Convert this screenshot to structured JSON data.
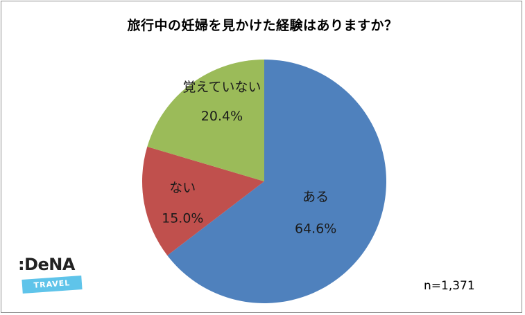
{
  "chart_data": {
    "type": "pie",
    "title": "旅行中の妊婦を見かけた経験はありますか？",
    "slices": [
      {
        "label": "ある",
        "value": 64.6,
        "display": "64.6%",
        "color": "#4f81bd"
      },
      {
        "label": "ない",
        "value": 15.0,
        "display": "15.0%",
        "color": "#c0504d"
      },
      {
        "label": "覚えていない",
        "value": 20.4,
        "display": "20.4%",
        "color": "#9bbb59"
      }
    ],
    "start": "12 o'clock",
    "direction": "clockwise",
    "note": "n=1,371"
  },
  "logo": {
    "word": ":DeNA",
    "tag": "TRAVEL"
  }
}
